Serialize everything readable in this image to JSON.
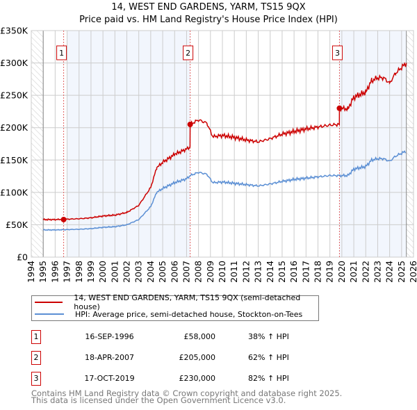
{
  "chart_data": {
    "type": "line",
    "title": "14, WEST END GARDENS, YARM, TS15 9QX",
    "subtitle": "Price paid vs. HM Land Registry's House Price Index (HPI)",
    "xlim": [
      1994,
      2026
    ],
    "ylim": [
      0,
      350000
    ],
    "x_ticks": [
      "1994",
      "1995",
      "1996",
      "1997",
      "1998",
      "1999",
      "2000",
      "2001",
      "2002",
      "2003",
      "2004",
      "2005",
      "2006",
      "2007",
      "2008",
      "2009",
      "2010",
      "2011",
      "2012",
      "2013",
      "2014",
      "2015",
      "2016",
      "2017",
      "2018",
      "2019",
      "2020",
      "2021",
      "2022",
      "2023",
      "2024",
      "2025",
      "2026"
    ],
    "y_ticks": [
      {
        "v": 0,
        "label": "£0"
      },
      {
        "v": 50000,
        "label": "£50K"
      },
      {
        "v": 100000,
        "label": "£100K"
      },
      {
        "v": 150000,
        "label": "£150K"
      },
      {
        "v": 200000,
        "label": "£200K"
      },
      {
        "v": 250000,
        "label": "£250K"
      },
      {
        "v": 300000,
        "label": "£300K"
      },
      {
        "v": 350000,
        "label": "£350K"
      }
    ],
    "grid": true,
    "data_start": 1995.0,
    "data_end": 2025.4,
    "shaded_periods": [
      [
        1997,
        2007.3
      ],
      [
        2019.8,
        2025.4
      ]
    ],
    "series": [
      {
        "name": "HPI: Average price, semi-detached house, Stockton-on-Tees",
        "color": "#5b8fd4",
        "x": [
          1995,
          1996,
          1997,
          1998,
          1999,
          2000,
          2001,
          2002,
          2003,
          2004,
          2004.5,
          2005,
          2006,
          2007,
          2007.3,
          2008,
          2008.7,
          2009.2,
          2010,
          2011,
          2012,
          2013,
          2014,
          2015,
          2016,
          2017,
          2018,
          2019,
          2019.8,
          2020.5,
          2021,
          2022,
          2022.5,
          2023,
          2023.5,
          2024,
          2024.5,
          2025.4
        ],
        "y": [
          42000,
          42000,
          42500,
          43000,
          44000,
          46000,
          47000,
          50000,
          58000,
          78000,
          100000,
          106000,
          115000,
          121000,
          126000,
          131000,
          128000,
          115000,
          116000,
          114000,
          112000,
          110000,
          113000,
          117000,
          120000,
          122000,
          124000,
          126000,
          126000,
          126000,
          136000,
          140000,
          150000,
          152000,
          152000,
          148000,
          156000,
          164000
        ]
      },
      {
        "name": "14, WEST END GARDENS, YARM, TS15 9QX (semi-detached house)",
        "color": "#cc0000",
        "x": [
          1995,
          1996,
          1997,
          1998,
          1999,
          2000,
          2001,
          2002,
          2003,
          2004,
          2004.5,
          2005,
          2006,
          2007,
          2007.29,
          2007.3,
          2008,
          2008.7,
          2009.2,
          2010,
          2011,
          2012,
          2013,
          2014,
          2015,
          2016,
          2017,
          2018,
          2019,
          2019.79,
          2019.8,
          2020.5,
          2021,
          2022,
          2022.5,
          2023,
          2023.5,
          2024,
          2024.5,
          2025.4
        ],
        "y": [
          58000,
          58000,
          58600,
          59300,
          60700,
          63500,
          64900,
          69000,
          80000,
          107600,
          138000,
          146300,
          158700,
          167000,
          170000,
          205000,
          212000,
          207000,
          186000,
          188000,
          185000,
          181000,
          178000,
          183000,
          190000,
          194000,
          198000,
          201000,
          204000,
          205000,
          230000,
          229000,
          247000,
          255000,
          273000,
          277000,
          277000,
          269000,
          284000,
          300000
        ]
      }
    ],
    "sales": [
      {
        "id": "1",
        "x": 1996.71,
        "y": 58000
      },
      {
        "id": "2",
        "x": 2007.3,
        "y": 205000
      },
      {
        "id": "3",
        "x": 2019.8,
        "y": 230000
      }
    ]
  },
  "legend": [
    {
      "label": "14, WEST END GARDENS, YARM, TS15 9QX (semi-detached house)",
      "color": "#cc0000"
    },
    {
      "label": "HPI: Average price, semi-detached house, Stockton-on-Tees",
      "color": "#5b8fd4"
    }
  ],
  "transactions": [
    {
      "num": "1",
      "date": "16-SEP-1996",
      "price": "£58,000",
      "hpi": "38% ↑ HPI"
    },
    {
      "num": "2",
      "date": "18-APR-2007",
      "price": "£205,000",
      "hpi": "62% ↑ HPI"
    },
    {
      "num": "3",
      "date": "17-OCT-2019",
      "price": "£230,000",
      "hpi": "82% ↑ HPI"
    }
  ],
  "footer": {
    "line1": "Contains HM Land Registry data © Crown copyright and database right 2025.",
    "line2": "This data is licensed under the Open Government Licence v3.0."
  }
}
